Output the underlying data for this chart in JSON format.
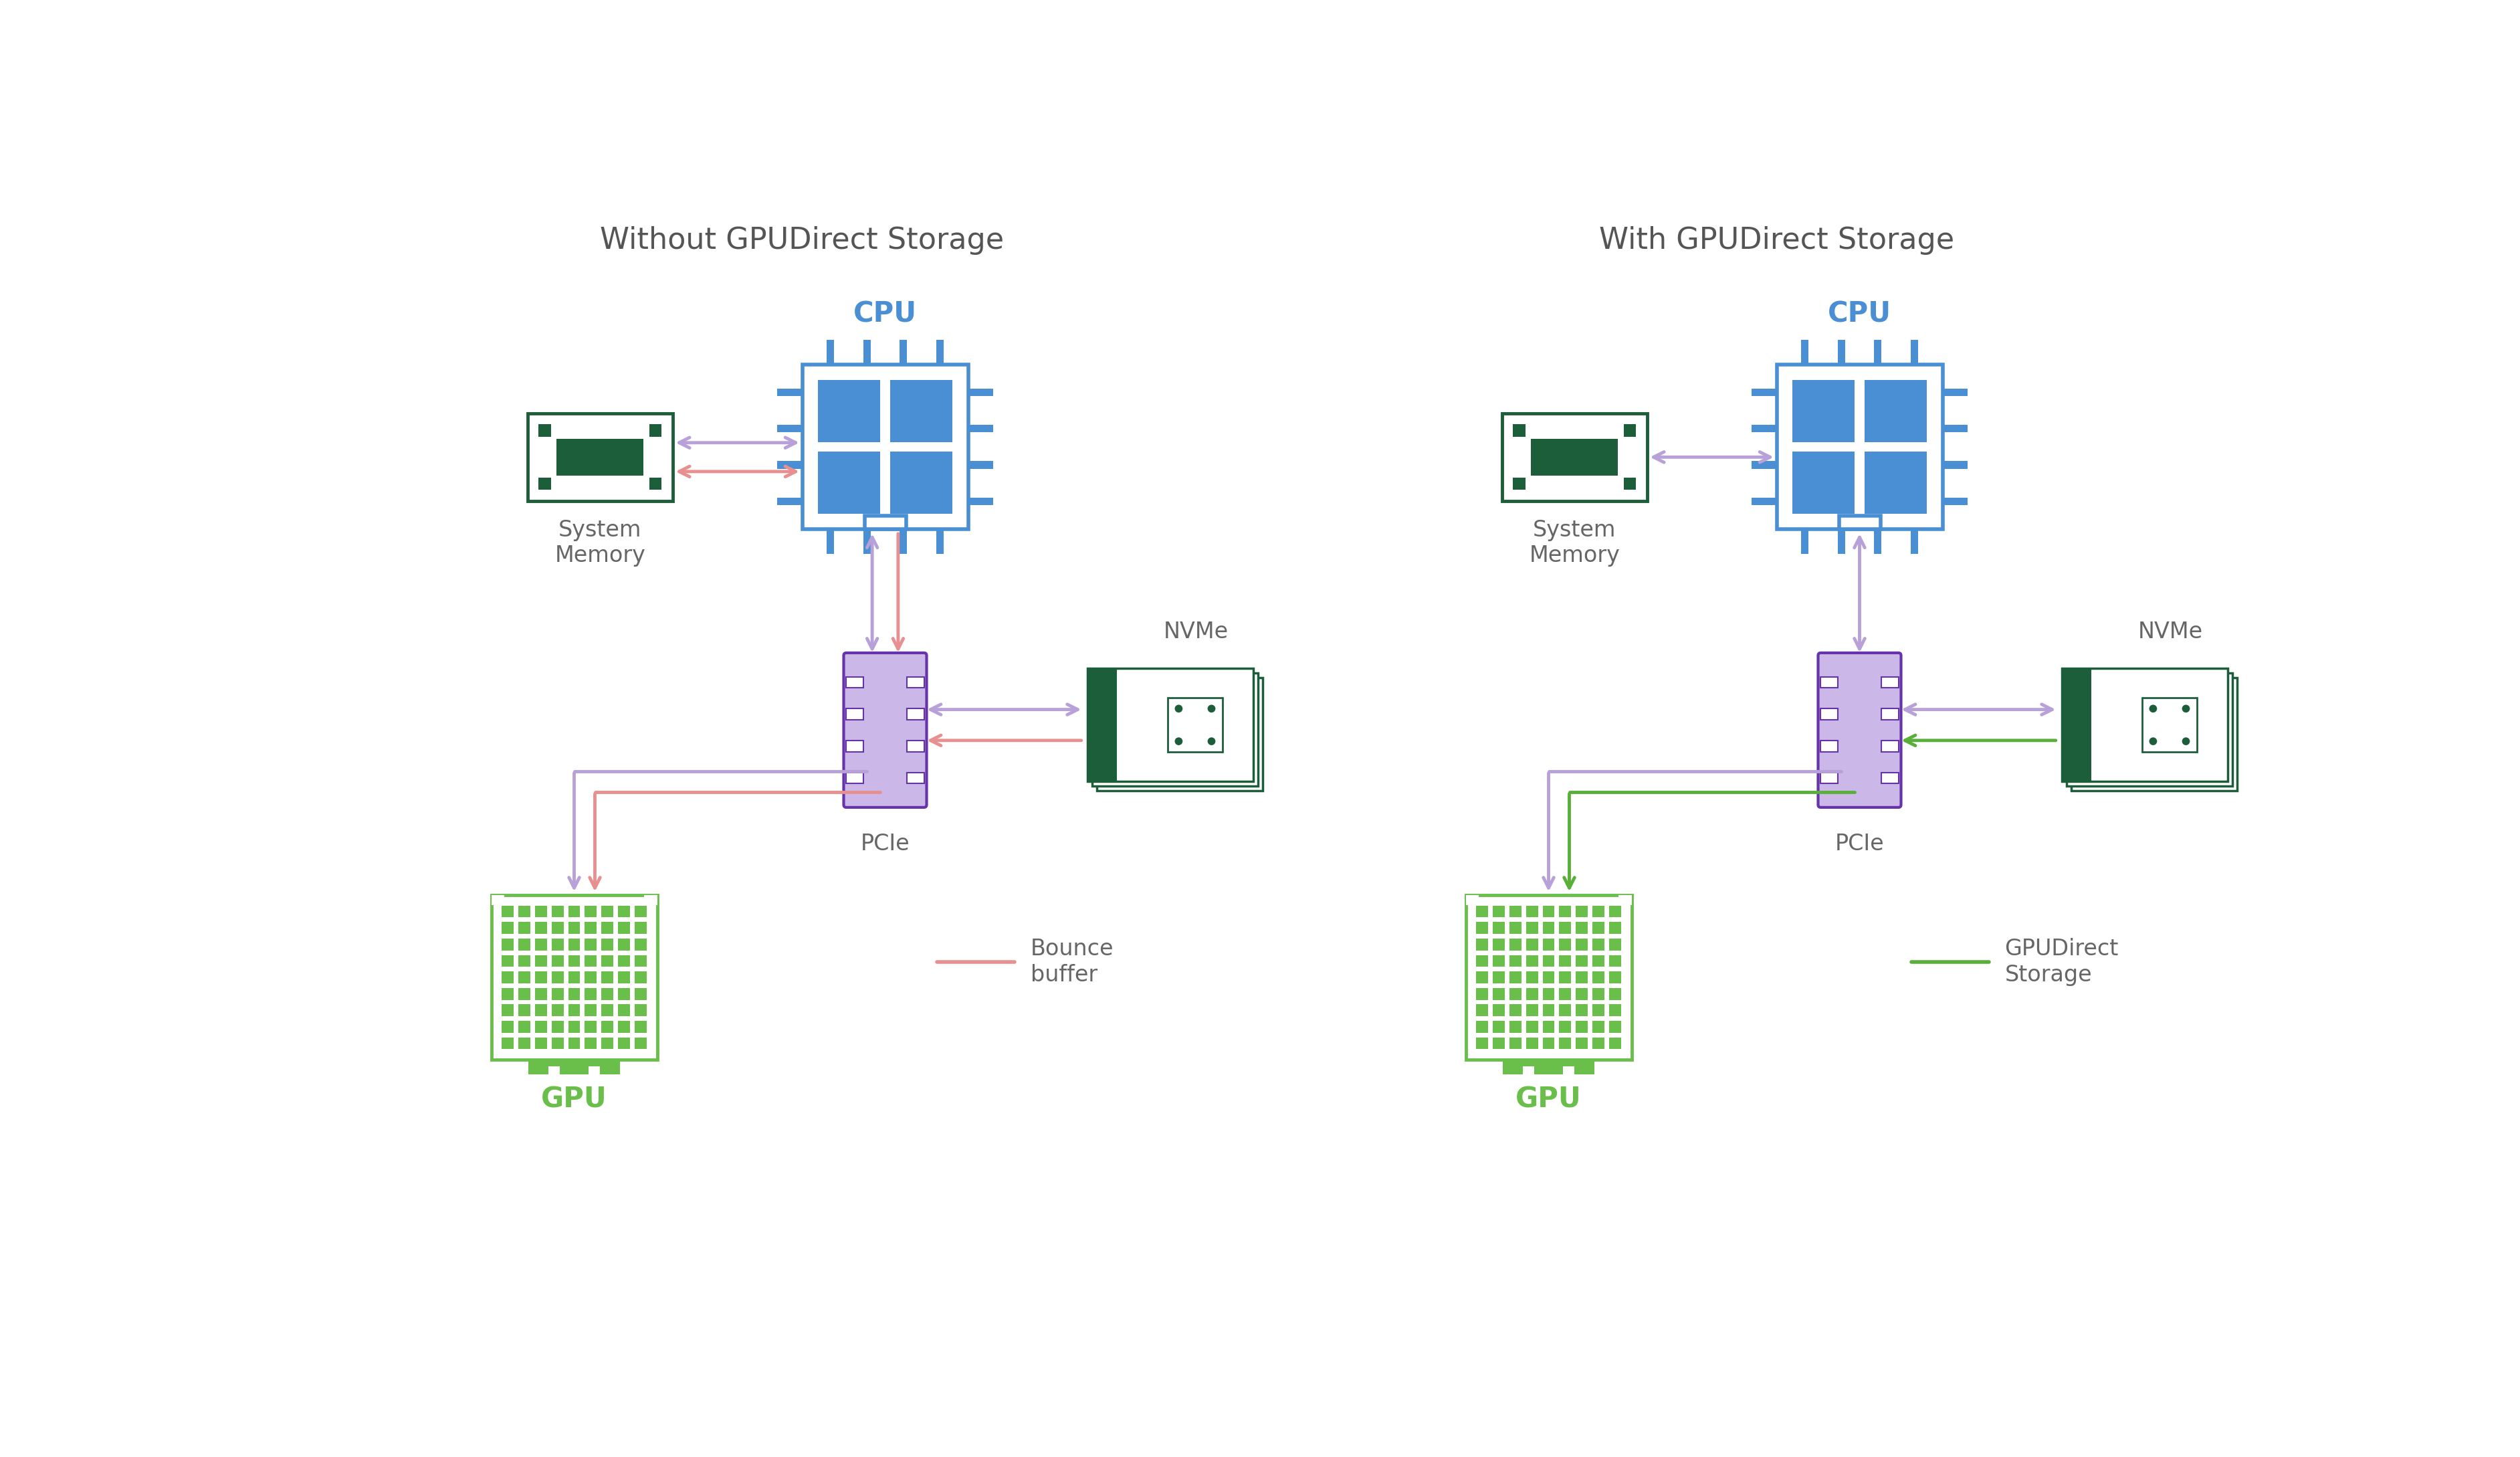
{
  "bg_color": "#ffffff",
  "title_left": "Without GPUDirect Storage",
  "title_right": "With GPUDirect Storage",
  "title_color": "#555555",
  "title_fontsize": 32,
  "cpu_color": "#4a8fd4",
  "cpu_inner_color": "#4a8fd4",
  "cpu_label": "CPU",
  "cpu_label_color": "#4a8fd4",
  "memory_border_color": "#1d5e3a",
  "memory_label": "System\nMemory",
  "memory_label_color": "#666666",
  "pcie_border_color": "#6633aa",
  "pcie_fill_color": "#cbb8e8",
  "pcie_label": "PCIe",
  "pcie_label_color": "#666666",
  "nvme_border_color": "#1d5e3a",
  "nvme_label": "NVMe",
  "nvme_label_color": "#666666",
  "gpu_border_color": "#6abf4b",
  "gpu_dot_color": "#6abf4b",
  "gpu_label": "GPU",
  "gpu_label_color": "#6abf4b",
  "arrow_purple": "#b8a0d8",
  "arrow_pink": "#e89090",
  "arrow_green": "#5aaf3b",
  "legend_bounce_label": "Bounce\nbuffer",
  "legend_gpu_label": "GPUDirect\nStorage",
  "legend_color": "#666666",
  "label_fontsize": 24,
  "component_fontsize": 30,
  "legend_fontsize": 24
}
